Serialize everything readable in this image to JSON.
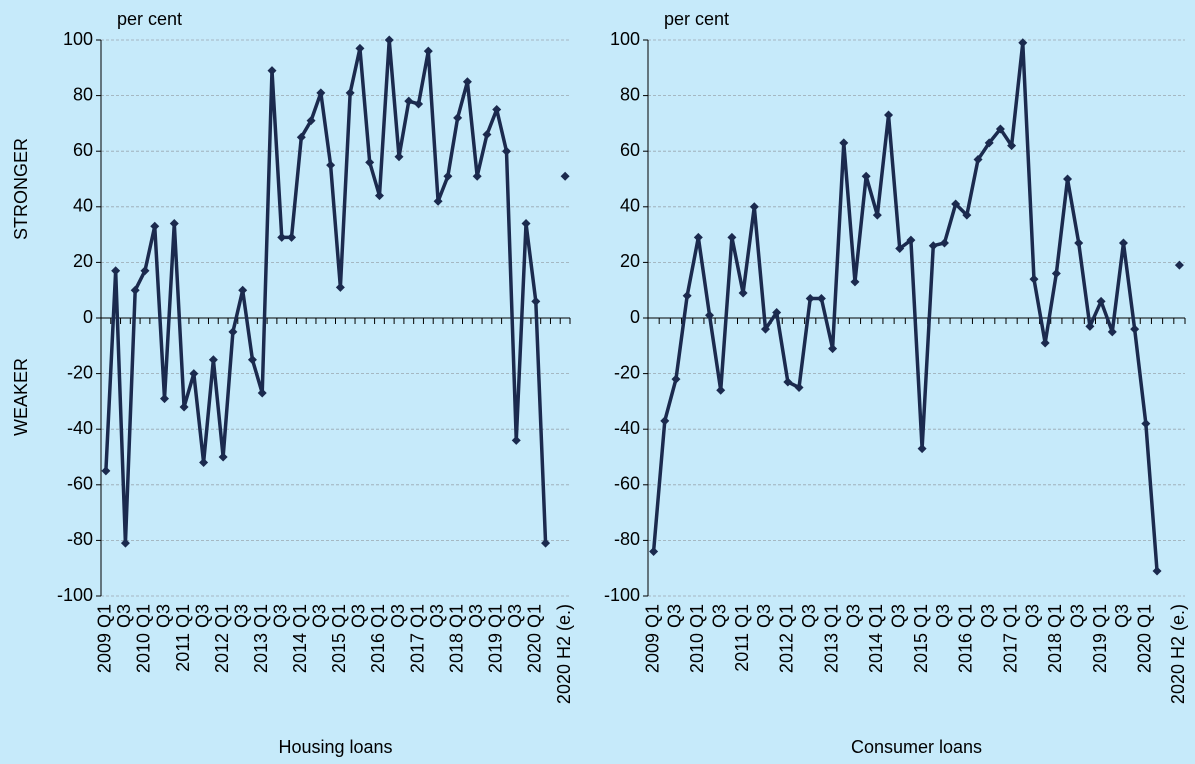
{
  "chart_data": [
    {
      "type": "line",
      "y_unit": "per cent",
      "y_label_top": "STRONGER",
      "y_label_bottom": "WEAKER",
      "x_label": "Housing loans",
      "categories": [
        "2009 Q1",
        null,
        "Q3",
        null,
        "2010 Q1",
        null,
        "Q3",
        null,
        "2011 Q1",
        null,
        "Q3",
        null,
        "2012 Q1",
        null,
        "Q3",
        null,
        "2013 Q1",
        null,
        "Q3",
        null,
        "2014 Q1",
        null,
        "Q3",
        null,
        "2015 Q1",
        null,
        "Q3",
        null,
        "2016 Q1",
        null,
        "Q3",
        null,
        "2017 Q1",
        null,
        "Q3",
        null,
        "2018 Q1",
        null,
        "Q3",
        null,
        "2019 Q1",
        null,
        "Q3",
        null,
        "2020 Q1",
        null,
        null,
        "2020 H2 (e.)"
      ],
      "series": [
        {
          "color": "#1b2a4e",
          "values": [
            -55,
            17,
            -81,
            10,
            17,
            33,
            -29,
            34,
            -32,
            -20,
            -52,
            -15,
            -50,
            -5,
            10,
            -15,
            -27,
            89,
            29,
            29,
            65,
            71,
            81,
            55,
            11,
            81,
            97,
            56,
            44,
            100,
            58,
            78,
            77,
            96,
            42,
            51,
            72,
            85,
            51,
            66,
            75,
            60,
            -44,
            34,
            6,
            -81,
            null,
            51
          ]
        }
      ],
      "ylim": [
        -100,
        100
      ],
      "yticks": [
        -100,
        -80,
        -60,
        -40,
        -20,
        0,
        20,
        40,
        60,
        80,
        100
      ],
      "grid": true
    },
    {
      "type": "line",
      "y_unit": "per cent",
      "x_label": "Consumer loans",
      "categories": [
        "2009 Q1",
        null,
        "Q3",
        null,
        "2010 Q1",
        null,
        "Q3",
        null,
        "2011 Q1",
        null,
        "Q3",
        null,
        "2012 Q1",
        null,
        "Q3",
        null,
        "2013 Q1",
        null,
        "Q3",
        null,
        "2014 Q1",
        null,
        "Q3",
        null,
        "2015 Q1",
        null,
        "Q3",
        null,
        "2016 Q1",
        null,
        "Q3",
        null,
        "2017 Q1",
        null,
        "Q3",
        null,
        "2018 Q1",
        null,
        "Q3",
        null,
        "2019 Q1",
        null,
        "Q3",
        null,
        "2020 Q1",
        null,
        null,
        "2020 H2 (e.)"
      ],
      "series": [
        {
          "color": "#1b2a4e",
          "values": [
            -84,
            -37,
            -22,
            8,
            29,
            1,
            -26,
            29,
            9,
            40,
            -4,
            2,
            -23,
            -25,
            7,
            7,
            -11,
            63,
            13,
            51,
            37,
            73,
            25,
            28,
            -47,
            26,
            27,
            41,
            37,
            57,
            63,
            68,
            62,
            99,
            14,
            -9,
            16,
            50,
            27,
            -3,
            6,
            -5,
            27,
            -4,
            -38,
            -91,
            null,
            19
          ]
        }
      ],
      "ylim": [
        -100,
        100
      ],
      "yticks": [
        -100,
        -80,
        -60,
        -40,
        -20,
        0,
        20,
        40,
        60,
        80,
        100
      ],
      "grid": true
    }
  ]
}
